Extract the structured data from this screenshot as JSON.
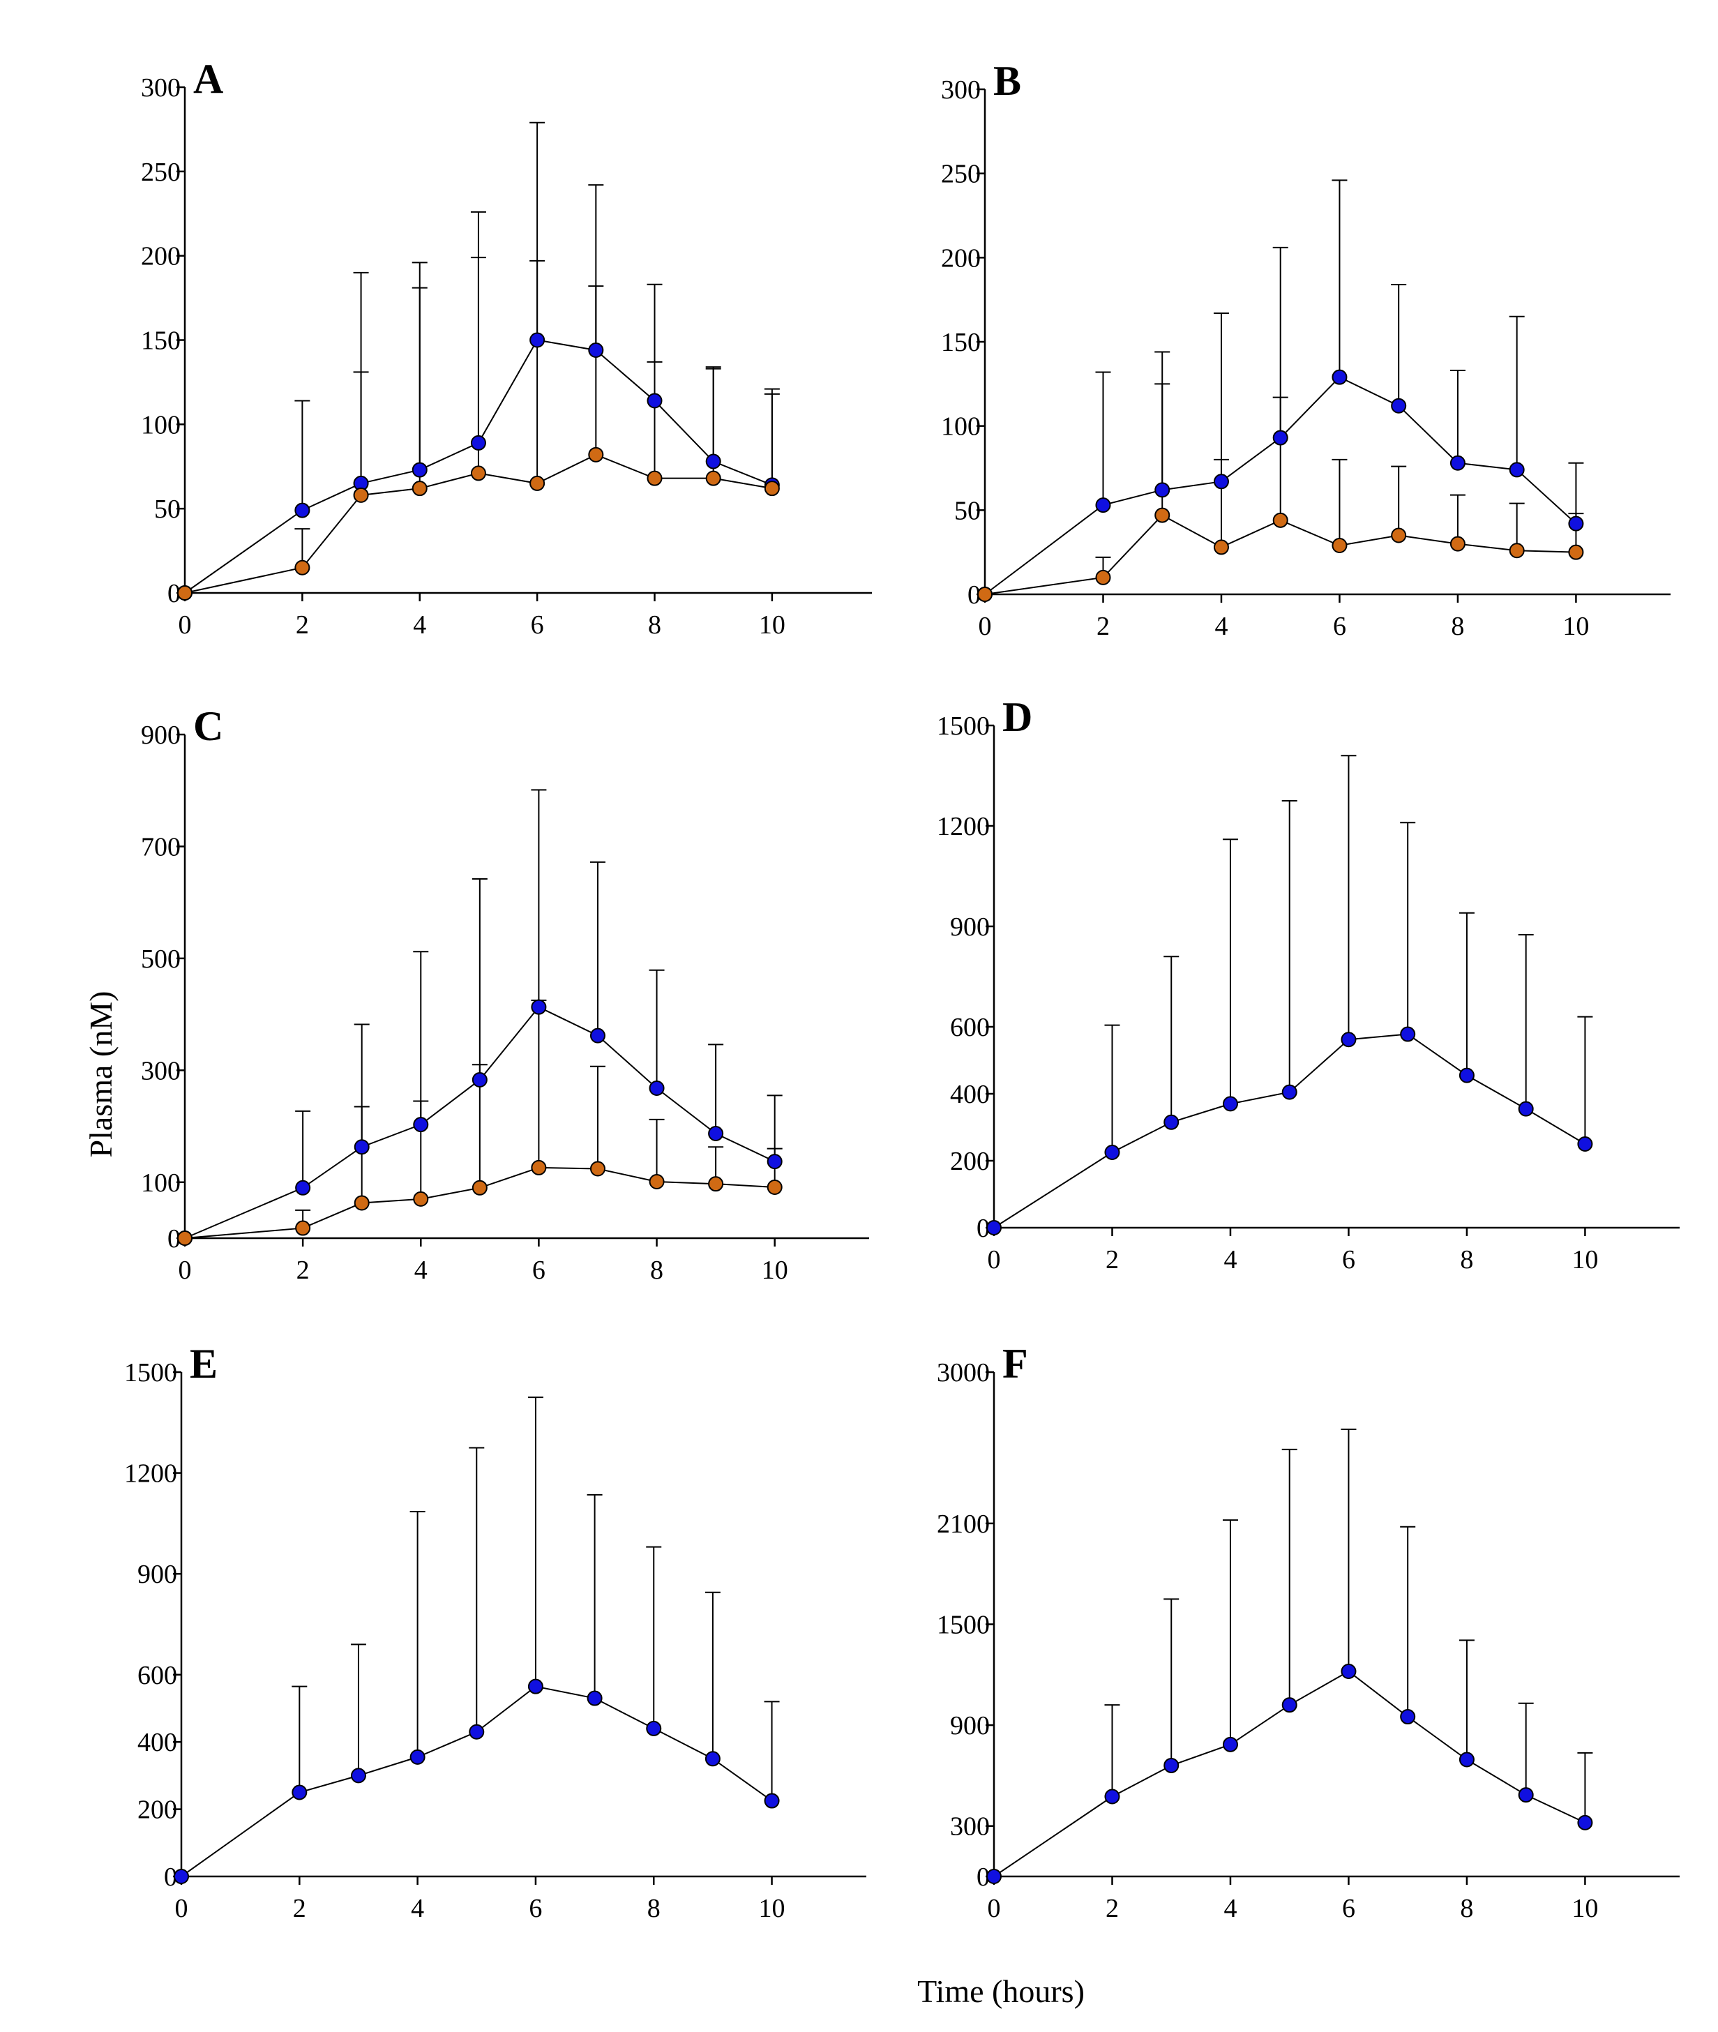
{
  "figure": {
    "ylabel": "Plasma (nM)",
    "xlabel": "Time (hours)"
  },
  "colors": {
    "series_blue": "#1010e0",
    "series_orange": "#d06a14",
    "line": "#000000"
  },
  "chart_data": [
    {
      "panel": "A",
      "type": "line",
      "x_ticks": [
        0,
        2,
        4,
        6,
        8,
        10
      ],
      "y_ticks": [
        0,
        50,
        100,
        150,
        200,
        250,
        300
      ],
      "xlim": [
        0,
        11.7
      ],
      "ylim": [
        0,
        300
      ],
      "series": [
        {
          "name": "blue",
          "color": "#1010e0",
          "x": [
            0,
            2,
            3,
            4,
            5,
            6,
            7,
            8,
            9,
            10
          ],
          "values": [
            0,
            49,
            65,
            73,
            89,
            150,
            144,
            114,
            78,
            64
          ],
          "err_upper": [
            null,
            114,
            190,
            196,
            226,
            279,
            242,
            183,
            134,
            121
          ]
        },
        {
          "name": "orange",
          "color": "#d06a14",
          "x": [
            0,
            2,
            3,
            4,
            5,
            6,
            7,
            8,
            9,
            10
          ],
          "values": [
            0,
            15,
            58,
            62,
            71,
            65,
            82,
            68,
            68,
            62
          ],
          "err_upper": [
            null,
            38,
            131,
            181,
            199,
            197,
            182,
            137,
            133,
            118
          ]
        }
      ]
    },
    {
      "panel": "B",
      "type": "line",
      "x_ticks": [
        0,
        2,
        4,
        6,
        8,
        10
      ],
      "y_ticks": [
        0,
        50,
        100,
        150,
        200,
        250,
        300
      ],
      "xlim": [
        0,
        11.6
      ],
      "ylim": [
        0,
        300
      ],
      "series": [
        {
          "name": "blue",
          "color": "#1010e0",
          "x": [
            0,
            2,
            3,
            4,
            5,
            6,
            7,
            8,
            9,
            10
          ],
          "values": [
            0,
            53,
            62,
            67,
            93,
            129,
            112,
            78,
            74,
            42
          ],
          "err_upper": [
            null,
            132,
            144,
            167,
            206,
            246,
            184,
            133,
            165,
            78
          ]
        },
        {
          "name": "orange",
          "color": "#d06a14",
          "x": [
            0,
            2,
            3,
            4,
            5,
            6,
            7,
            8,
            9,
            10
          ],
          "values": [
            0,
            10,
            47,
            28,
            44,
            29,
            35,
            30,
            26,
            25
          ],
          "err_upper": [
            null,
            22,
            125,
            80,
            117,
            80,
            76,
            59,
            54,
            48
          ]
        }
      ]
    },
    {
      "panel": "C",
      "type": "line",
      "x_ticks": [
        0,
        2,
        4,
        6,
        8,
        10
      ],
      "y_ticks": [
        0,
        100,
        300,
        500,
        700,
        900
      ],
      "xlim": [
        0,
        11.6
      ],
      "ylim": [
        0,
        900
      ],
      "series": [
        {
          "name": "blue",
          "color": "#1010e0",
          "x": [
            0,
            2,
            3,
            4,
            5,
            6,
            7,
            8,
            9,
            10
          ],
          "values": [
            0,
            90,
            163,
            203,
            283,
            413,
            362,
            268,
            187,
            137
          ],
          "err_upper": [
            null,
            227,
            382,
            512,
            642,
            801,
            672,
            479,
            346,
            255
          ]
        },
        {
          "name": "orange",
          "color": "#d06a14",
          "x": [
            0,
            2,
            3,
            4,
            5,
            6,
            7,
            8,
            9,
            10
          ],
          "values": [
            0,
            18,
            63,
            70,
            90,
            126,
            124,
            101,
            97,
            91
          ],
          "err_upper": [
            null,
            50,
            235,
            245,
            310,
            425,
            307,
            212,
            163,
            160
          ]
        }
      ]
    },
    {
      "panel": "D",
      "type": "line",
      "x_ticks": [
        0,
        2,
        4,
        6,
        8,
        10
      ],
      "y_ticks": [
        0,
        200,
        400,
        600,
        900,
        1200,
        1500
      ],
      "xlim": [
        0,
        11.6
      ],
      "ylim": [
        0,
        1500
      ],
      "series": [
        {
          "name": "blue",
          "color": "#1010e0",
          "x": [
            0,
            2,
            3,
            4,
            5,
            6,
            7,
            8,
            9,
            10
          ],
          "values": [
            0,
            225,
            315,
            370,
            405,
            562,
            578,
            455,
            355,
            250
          ],
          "err_upper": [
            null,
            605,
            810,
            1160,
            1275,
            1410,
            1210,
            940,
            875,
            630
          ]
        }
      ]
    },
    {
      "panel": "E",
      "type": "line",
      "x_ticks": [
        0,
        2,
        4,
        6,
        8,
        10
      ],
      "y_ticks": [
        0,
        200,
        400,
        600,
        900,
        1200,
        1500
      ],
      "xlim": [
        0,
        11.6
      ],
      "ylim": [
        0,
        1500
      ],
      "series": [
        {
          "name": "blue",
          "color": "#1010e0",
          "x": [
            0,
            2,
            3,
            4,
            5,
            6,
            7,
            8,
            9,
            10
          ],
          "values": [
            0,
            250,
            300,
            355,
            430,
            565,
            530,
            440,
            350,
            225
          ],
          "err_upper": [
            null,
            565,
            690,
            1085,
            1275,
            1425,
            1135,
            980,
            845,
            520
          ]
        }
      ]
    },
    {
      "panel": "F",
      "type": "line",
      "x_ticks": [
        0,
        2,
        4,
        6,
        8,
        10
      ],
      "y_ticks": [
        0,
        300,
        900,
        1500,
        2100,
        3000
      ],
      "xlim": [
        0,
        11.6
      ],
      "ylim": [
        0,
        3000
      ],
      "series": [
        {
          "name": "blue",
          "color": "#1010e0",
          "x": [
            0,
            2,
            3,
            4,
            5,
            6,
            7,
            8,
            9,
            10
          ],
          "values": [
            0,
            475,
            660,
            785,
            1020,
            1220,
            950,
            695,
            485,
            320
          ],
          "err_upper": [
            null,
            1020,
            1650,
            2120,
            2540,
            2660,
            2080,
            1405,
            1030,
            735
          ]
        }
      ]
    }
  ]
}
